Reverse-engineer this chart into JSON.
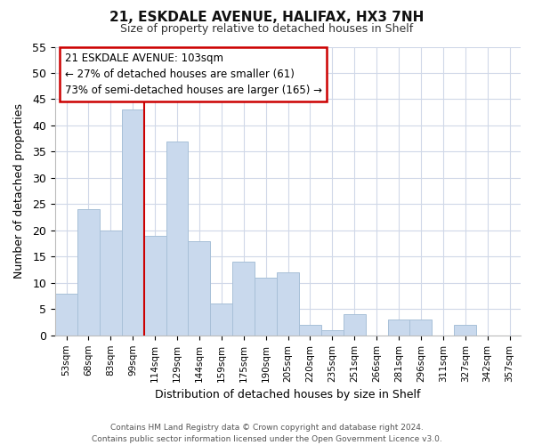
{
  "title_line1": "21, ESKDALE AVENUE, HALIFAX, HX3 7NH",
  "title_line2": "Size of property relative to detached houses in Shelf",
  "xlabel": "Distribution of detached houses by size in Shelf",
  "ylabel": "Number of detached properties",
  "categories": [
    "53sqm",
    "68sqm",
    "83sqm",
    "99sqm",
    "114sqm",
    "129sqm",
    "144sqm",
    "159sqm",
    "175sqm",
    "190sqm",
    "205sqm",
    "220sqm",
    "235sqm",
    "251sqm",
    "266sqm",
    "281sqm",
    "296sqm",
    "311sqm",
    "327sqm",
    "342sqm",
    "357sqm"
  ],
  "values": [
    8,
    24,
    20,
    43,
    19,
    37,
    18,
    6,
    14,
    11,
    12,
    2,
    1,
    4,
    0,
    3,
    3,
    0,
    2,
    0,
    0
  ],
  "bar_color": "#c9d9ed",
  "bar_edge_color": "#a8c0d8",
  "vline_x": 3.5,
  "vline_color": "#cc0000",
  "annotation_title": "21 ESKDALE AVENUE: 103sqm",
  "annotation_line1": "← 27% of detached houses are smaller (61)",
  "annotation_line2": "73% of semi-detached houses are larger (165) →",
  "annotation_box_color": "#ffffff",
  "annotation_box_edge": "#cc0000",
  "ylim": [
    0,
    55
  ],
  "yticks": [
    0,
    5,
    10,
    15,
    20,
    25,
    30,
    35,
    40,
    45,
    50,
    55
  ],
  "footer_line1": "Contains HM Land Registry data © Crown copyright and database right 2024.",
  "footer_line2": "Contains public sector information licensed under the Open Government Licence v3.0.",
  "bg_color": "#ffffff",
  "grid_color": "#d0d8e8"
}
